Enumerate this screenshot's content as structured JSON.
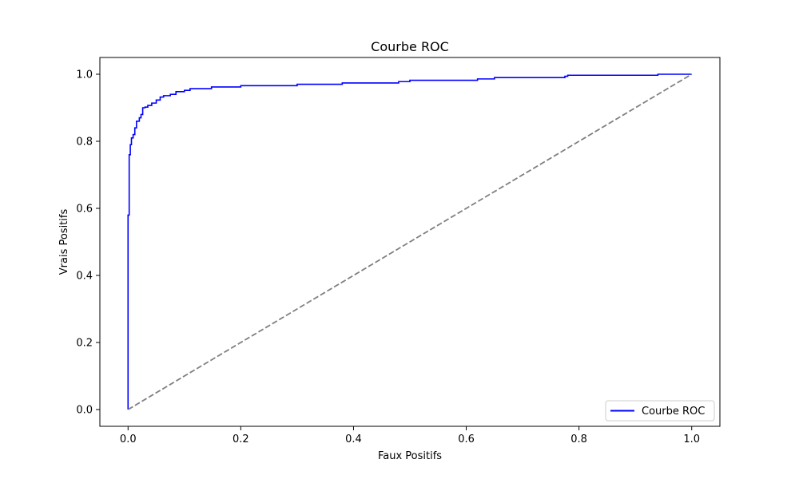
{
  "chart_data": {
    "type": "line",
    "title": "Courbe ROC",
    "xlabel": "Faux Positifs",
    "ylabel": "Vrais Positifs",
    "xlim": [
      -0.05,
      1.05
    ],
    "ylim": [
      -0.05,
      1.05
    ],
    "xticks": [
      0.0,
      0.2,
      0.4,
      0.6,
      0.8,
      1.0
    ],
    "yticks": [
      0.0,
      0.2,
      0.4,
      0.6,
      0.8,
      1.0
    ],
    "xtick_labels": [
      "0.0",
      "0.2",
      "0.4",
      "0.6",
      "0.8",
      "1.0"
    ],
    "ytick_labels": [
      "0.0",
      "0.2",
      "0.4",
      "0.6",
      "0.8",
      "1.0"
    ],
    "grid": false,
    "legend_position": "lower right",
    "series": [
      {
        "name": "Courbe ROC",
        "color": "#0000ff",
        "style": "solid",
        "points": [
          [
            0.0,
            0.0
          ],
          [
            0.0,
            0.58
          ],
          [
            0.002,
            0.58
          ],
          [
            0.002,
            0.76
          ],
          [
            0.004,
            0.76
          ],
          [
            0.004,
            0.79
          ],
          [
            0.006,
            0.79
          ],
          [
            0.006,
            0.81
          ],
          [
            0.009,
            0.81
          ],
          [
            0.009,
            0.82
          ],
          [
            0.012,
            0.82
          ],
          [
            0.012,
            0.84
          ],
          [
            0.015,
            0.84
          ],
          [
            0.015,
            0.86
          ],
          [
            0.02,
            0.86
          ],
          [
            0.02,
            0.87
          ],
          [
            0.023,
            0.87
          ],
          [
            0.023,
            0.88
          ],
          [
            0.026,
            0.88
          ],
          [
            0.026,
            0.9
          ],
          [
            0.03,
            0.9
          ],
          [
            0.03,
            0.902
          ],
          [
            0.035,
            0.902
          ],
          [
            0.035,
            0.907
          ],
          [
            0.042,
            0.907
          ],
          [
            0.042,
            0.914
          ],
          [
            0.05,
            0.914
          ],
          [
            0.05,
            0.923
          ],
          [
            0.057,
            0.923
          ],
          [
            0.057,
            0.932
          ],
          [
            0.063,
            0.932
          ],
          [
            0.063,
            0.936
          ],
          [
            0.075,
            0.936
          ],
          [
            0.075,
            0.94
          ],
          [
            0.085,
            0.94
          ],
          [
            0.085,
            0.948
          ],
          [
            0.1,
            0.948
          ],
          [
            0.1,
            0.952
          ],
          [
            0.11,
            0.952
          ],
          [
            0.11,
            0.957
          ],
          [
            0.148,
            0.957
          ],
          [
            0.148,
            0.962
          ],
          [
            0.2,
            0.962
          ],
          [
            0.2,
            0.966
          ],
          [
            0.3,
            0.966
          ],
          [
            0.3,
            0.97
          ],
          [
            0.38,
            0.97
          ],
          [
            0.38,
            0.974
          ],
          [
            0.48,
            0.974
          ],
          [
            0.48,
            0.978
          ],
          [
            0.5,
            0.978
          ],
          [
            0.5,
            0.982
          ],
          [
            0.62,
            0.982
          ],
          [
            0.62,
            0.986
          ],
          [
            0.65,
            0.986
          ],
          [
            0.65,
            0.99
          ],
          [
            0.775,
            0.99
          ],
          [
            0.775,
            0.994
          ],
          [
            0.78,
            0.994
          ],
          [
            0.78,
            0.997
          ],
          [
            0.94,
            0.997
          ],
          [
            0.94,
            1.0
          ],
          [
            1.0,
            1.0
          ]
        ]
      },
      {
        "color": "#808080",
        "style": "dashed",
        "points": [
          [
            0.0,
            0.0
          ],
          [
            1.0,
            1.0
          ]
        ]
      }
    ]
  }
}
